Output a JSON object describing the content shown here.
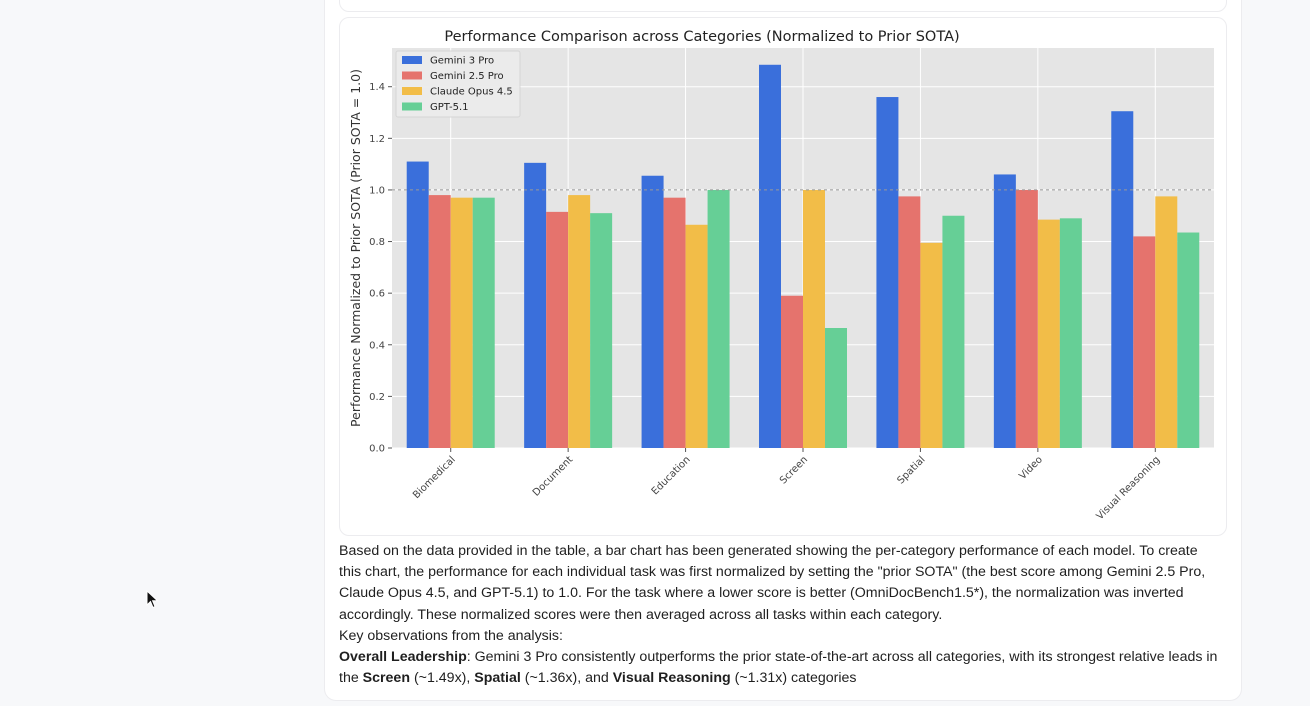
{
  "chart_data": {
    "type": "bar",
    "title": "Performance Comparison across Categories (Normalized to Prior SOTA)",
    "xlabel": "",
    "ylabel": "Performance Normalized to Prior SOTA (Prior SOTA = 1.0)",
    "ylim": [
      0,
      1.55
    ],
    "yticks": [
      0.0,
      0.2,
      0.4,
      0.6,
      0.8,
      1.0,
      1.2,
      1.4
    ],
    "grid": true,
    "reference_line": 1.0,
    "legend_position": "upper-left",
    "categories": [
      "Biomedical",
      "Document",
      "Education",
      "Screen",
      "Spatial",
      "Video",
      "Visual Reasoning"
    ],
    "series": [
      {
        "name": "Gemini 3 Pro",
        "color": "#3a6fdb",
        "values": [
          1.11,
          1.105,
          1.055,
          1.485,
          1.36,
          1.06,
          1.305
        ]
      },
      {
        "name": "Gemini 2.5 Pro",
        "color": "#e5736d",
        "values": [
          0.98,
          0.915,
          0.97,
          0.59,
          0.975,
          1.0,
          0.82
        ]
      },
      {
        "name": "Claude Opus 4.5",
        "color": "#f2bd48",
        "values": [
          0.97,
          0.98,
          0.865,
          1.0,
          0.795,
          0.885,
          0.975
        ]
      },
      {
        "name": "GPT-5.1",
        "color": "#66cf96",
        "values": [
          0.97,
          0.91,
          1.0,
          0.465,
          0.9,
          0.89,
          0.835
        ]
      }
    ]
  },
  "answer": {
    "p1": "Based on the data provided in the table, a bar chart has been generated showing the per-category performance of each model. To create this chart, the performance for each individual task was first normalized by setting the \"prior SOTA\" (the best score among Gemini 2.5 Pro, Claude Opus 4.5, and GPT-5.1) to 1.0. For the task where a lower score is better (OmniDocBench1.5*), the normalization was inverted accordingly. These normalized scores were then averaged across all tasks within each category.",
    "p2": "Key observations from the analysis:",
    "obs1": {
      "heading": "Overall Leadership",
      "text1": ": Gemini 3 Pro consistently outperforms the prior state-of-the-art across all categories, with its strongest relative leads in the ",
      "term1": "Screen",
      "text2": " (~1.49x), ",
      "term2": "Spatial",
      "text3": " (~1.36x), and ",
      "term3": "Visual Reasoning",
      "text4": " (~1.31x) categories"
    }
  }
}
